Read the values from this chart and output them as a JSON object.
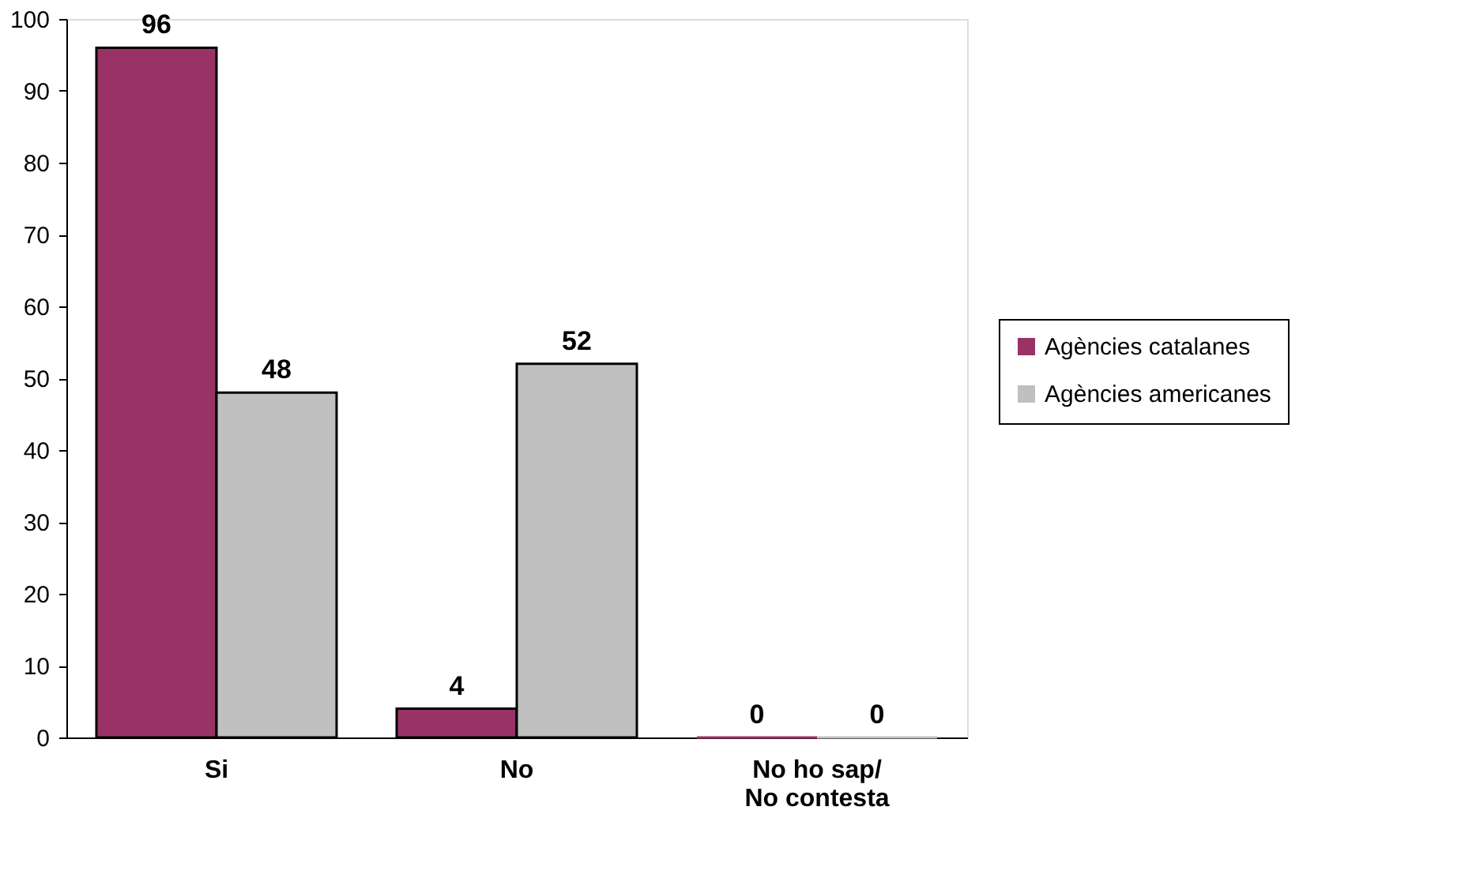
{
  "chart_data": {
    "type": "bar",
    "categories": [
      "Si",
      "No",
      "No ho sap/\nNo contesta"
    ],
    "series": [
      {
        "name": "Agències catalanes",
        "color": "#993366",
        "values": [
          96,
          4,
          0
        ]
      },
      {
        "name": "Agències americanes",
        "color": "#c0c0c0",
        "values": [
          48,
          52,
          0
        ]
      }
    ],
    "ylim": [
      0,
      100
    ],
    "yticks": [
      0,
      10,
      20,
      30,
      40,
      50,
      60,
      70,
      80,
      90,
      100
    ],
    "grid": false,
    "legend": "right",
    "data_labels": true
  }
}
